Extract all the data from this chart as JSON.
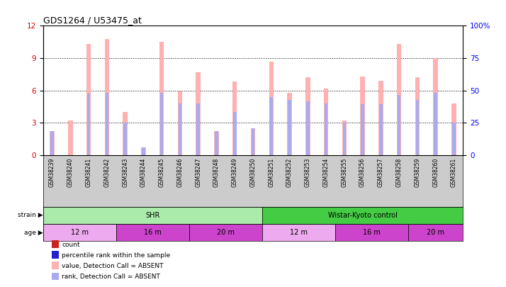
{
  "title": "GDS1264 / U53475_at",
  "samples": [
    "GSM38239",
    "GSM38240",
    "GSM38241",
    "GSM38242",
    "GSM38243",
    "GSM38244",
    "GSM38245",
    "GSM38246",
    "GSM38247",
    "GSM38248",
    "GSM38249",
    "GSM38250",
    "GSM38251",
    "GSM38252",
    "GSM38253",
    "GSM38254",
    "GSM38255",
    "GSM38256",
    "GSM38257",
    "GSM38258",
    "GSM38259",
    "GSM38260",
    "GSM38261"
  ],
  "pink_heights": [
    2.2,
    3.2,
    10.3,
    10.8,
    4.0,
    0.7,
    10.5,
    5.9,
    7.7,
    2.2,
    6.8,
    2.5,
    8.7,
    5.8,
    7.2,
    6.2,
    3.2,
    7.3,
    6.9,
    10.3,
    7.2,
    9.0,
    4.8
  ],
  "blue_heights": [
    2.2,
    0.0,
    5.7,
    5.8,
    3.0,
    0.7,
    5.8,
    4.8,
    4.8,
    2.2,
    4.0,
    2.5,
    5.4,
    5.1,
    5.0,
    4.8,
    3.0,
    4.7,
    4.7,
    5.6,
    5.1,
    5.8,
    3.0
  ],
  "color_absent_value": "#ffb0b0",
  "color_absent_rank": "#aaaaee",
  "color_count": "#cc2222",
  "color_percentile": "#2222cc",
  "ylim_left": [
    0,
    12
  ],
  "ylim_right": [
    0,
    100
  ],
  "yticks_left": [
    0,
    3,
    6,
    9,
    12
  ],
  "yticks_right": [
    0,
    25,
    50,
    75,
    100
  ],
  "ytick_labels_right": [
    "0",
    "25",
    "50",
    "75",
    "100%"
  ],
  "strain_groups": [
    {
      "label": "SHR",
      "start": 0,
      "end": 12,
      "color": "#aaeaaa"
    },
    {
      "label": "Wistar-Kyoto control",
      "start": 12,
      "end": 23,
      "color": "#44cc44"
    }
  ],
  "age_groups": [
    {
      "label": "12 m",
      "start": 0,
      "end": 4,
      "color": "#eeaaee"
    },
    {
      "label": "16 m",
      "start": 4,
      "end": 8,
      "color": "#cc44cc"
    },
    {
      "label": "20 m",
      "start": 8,
      "end": 12,
      "color": "#cc44cc"
    },
    {
      "label": "12 m",
      "start": 12,
      "end": 16,
      "color": "#eeaaee"
    },
    {
      "label": "16 m",
      "start": 16,
      "end": 20,
      "color": "#cc44cc"
    },
    {
      "label": "20 m",
      "start": 20,
      "end": 23,
      "color": "#cc44cc"
    }
  ],
  "legend_items": [
    {
      "color": "#cc2222",
      "label": "count"
    },
    {
      "color": "#2222cc",
      "label": "percentile rank within the sample"
    },
    {
      "color": "#ffb0b0",
      "label": "value, Detection Call = ABSENT"
    },
    {
      "color": "#aaaaee",
      "label": "rank, Detection Call = ABSENT"
    }
  ],
  "background_color": "#ffffff",
  "xlabel_bg": "#cccccc"
}
